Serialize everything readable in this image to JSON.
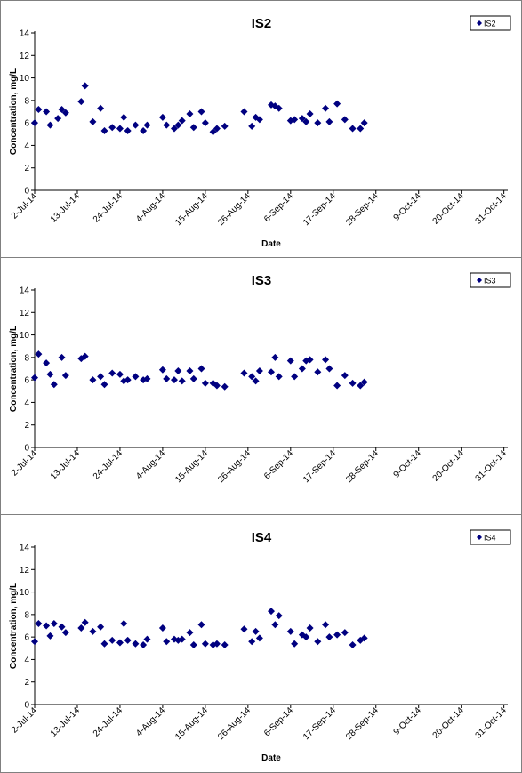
{
  "chart_data": [
    {
      "type": "scatter",
      "title": "IS2",
      "xlabel": "Date",
      "ylabel": "Concentration, mg/L",
      "ylim": [
        0,
        14
      ],
      "yticks": [
        0,
        2,
        4,
        6,
        8,
        10,
        12,
        14
      ],
      "xlim": [
        "2014-07-02",
        "2014-11-01"
      ],
      "xticks": [
        {
          "date": "2014-07-02",
          "label": "2-Jul-14"
        },
        {
          "date": "2014-07-13",
          "label": "13-Jul-14"
        },
        {
          "date": "2014-07-24",
          "label": "24-Jul-14"
        },
        {
          "date": "2014-08-04",
          "label": "4-Aug-14"
        },
        {
          "date": "2014-08-15",
          "label": "15-Aug-14"
        },
        {
          "date": "2014-08-26",
          "label": "26-Aug-14"
        },
        {
          "date": "2014-09-06",
          "label": "6-Sep-14"
        },
        {
          "date": "2014-09-17",
          "label": "17-Sep-14"
        },
        {
          "date": "2014-09-28",
          "label": "28-Sep-14"
        },
        {
          "date": "2014-10-09",
          "label": "9-Oct-14"
        },
        {
          "date": "2014-10-20",
          "label": "20-Oct-14"
        },
        {
          "date": "2014-10-31",
          "label": "31-Oct-14"
        }
      ],
      "grid": false,
      "legend_position": "top-right",
      "marker_color": "#000080",
      "series": [
        {
          "name": "IS2",
          "points": [
            {
              "x": "2014-07-02",
              "y": 6.0
            },
            {
              "x": "2014-07-03",
              "y": 7.2
            },
            {
              "x": "2014-07-05",
              "y": 7.0
            },
            {
              "x": "2014-07-06",
              "y": 5.8
            },
            {
              "x": "2014-07-08",
              "y": 6.4
            },
            {
              "x": "2014-07-09",
              "y": 7.2
            },
            {
              "x": "2014-07-10",
              "y": 6.9
            },
            {
              "x": "2014-07-14",
              "y": 7.9
            },
            {
              "x": "2014-07-15",
              "y": 9.3
            },
            {
              "x": "2014-07-17",
              "y": 6.1
            },
            {
              "x": "2014-07-19",
              "y": 7.3
            },
            {
              "x": "2014-07-20",
              "y": 5.3
            },
            {
              "x": "2014-07-22",
              "y": 5.6
            },
            {
              "x": "2014-07-24",
              "y": 5.5
            },
            {
              "x": "2014-07-25",
              "y": 6.5
            },
            {
              "x": "2014-07-26",
              "y": 5.3
            },
            {
              "x": "2014-07-28",
              "y": 5.8
            },
            {
              "x": "2014-07-30",
              "y": 5.3
            },
            {
              "x": "2014-07-31",
              "y": 5.8
            },
            {
              "x": "2014-08-04",
              "y": 6.5
            },
            {
              "x": "2014-08-05",
              "y": 5.8
            },
            {
              "x": "2014-08-07",
              "y": 5.5
            },
            {
              "x": "2014-08-08",
              "y": 5.8
            },
            {
              "x": "2014-08-09",
              "y": 6.2
            },
            {
              "x": "2014-08-11",
              "y": 6.8
            },
            {
              "x": "2014-08-12",
              "y": 5.6
            },
            {
              "x": "2014-08-14",
              "y": 7.0
            },
            {
              "x": "2014-08-15",
              "y": 6.0
            },
            {
              "x": "2014-08-17",
              "y": 5.2
            },
            {
              "x": "2014-08-18",
              "y": 5.5
            },
            {
              "x": "2014-08-20",
              "y": 5.7
            },
            {
              "x": "2014-08-25",
              "y": 7.0
            },
            {
              "x": "2014-08-27",
              "y": 5.7
            },
            {
              "x": "2014-08-28",
              "y": 6.5
            },
            {
              "x": "2014-08-29",
              "y": 6.3
            },
            {
              "x": "2014-09-01",
              "y": 7.6
            },
            {
              "x": "2014-09-02",
              "y": 7.5
            },
            {
              "x": "2014-09-03",
              "y": 7.3
            },
            {
              "x": "2014-09-06",
              "y": 6.2
            },
            {
              "x": "2014-09-07",
              "y": 6.3
            },
            {
              "x": "2014-09-09",
              "y": 6.4
            },
            {
              "x": "2014-09-10",
              "y": 6.1
            },
            {
              "x": "2014-09-11",
              "y": 6.8
            },
            {
              "x": "2014-09-13",
              "y": 6.0
            },
            {
              "x": "2014-09-15",
              "y": 7.3
            },
            {
              "x": "2014-09-16",
              "y": 6.1
            },
            {
              "x": "2014-09-18",
              "y": 7.7
            },
            {
              "x": "2014-09-20",
              "y": 6.3
            },
            {
              "x": "2014-09-22",
              "y": 5.5
            },
            {
              "x": "2014-09-24",
              "y": 5.5
            },
            {
              "x": "2014-09-25",
              "y": 6.0
            }
          ]
        }
      ]
    },
    {
      "type": "scatter",
      "title": "IS3",
      "xlabel": "",
      "ylabel": "Concentration, mg/L",
      "ylim": [
        0,
        14
      ],
      "yticks": [
        0,
        2,
        4,
        6,
        8,
        10,
        12,
        14
      ],
      "xlim": [
        "2014-07-02",
        "2014-11-01"
      ],
      "xticks": [
        {
          "date": "2014-07-02",
          "label": "2-Jul-14"
        },
        {
          "date": "2014-07-13",
          "label": "13-Jul-14"
        },
        {
          "date": "2014-07-24",
          "label": "24-Jul-14"
        },
        {
          "date": "2014-08-04",
          "label": "4-Aug-14"
        },
        {
          "date": "2014-08-15",
          "label": "15-Aug-14"
        },
        {
          "date": "2014-08-26",
          "label": "26-Aug-14"
        },
        {
          "date": "2014-09-06",
          "label": "6-Sep-14"
        },
        {
          "date": "2014-09-17",
          "label": "17-Sep-14"
        },
        {
          "date": "2014-09-28",
          "label": "28-Sep-14"
        },
        {
          "date": "2014-10-09",
          "label": "9-Oct-14"
        },
        {
          "date": "2014-10-20",
          "label": "20-Oct-14"
        },
        {
          "date": "2014-10-31",
          "label": "31-Oct-14"
        }
      ],
      "grid": false,
      "legend_position": "top-right",
      "marker_color": "#000080",
      "series": [
        {
          "name": "IS3",
          "points": [
            {
              "x": "2014-07-02",
              "y": 6.2
            },
            {
              "x": "2014-07-03",
              "y": 8.3
            },
            {
              "x": "2014-07-05",
              "y": 7.5
            },
            {
              "x": "2014-07-06",
              "y": 6.5
            },
            {
              "x": "2014-07-07",
              "y": 5.6
            },
            {
              "x": "2014-07-09",
              "y": 8.0
            },
            {
              "x": "2014-07-10",
              "y": 6.4
            },
            {
              "x": "2014-07-14",
              "y": 7.9
            },
            {
              "x": "2014-07-15",
              "y": 8.1
            },
            {
              "x": "2014-07-17",
              "y": 6.0
            },
            {
              "x": "2014-07-19",
              "y": 6.3
            },
            {
              "x": "2014-07-20",
              "y": 5.6
            },
            {
              "x": "2014-07-22",
              "y": 6.6
            },
            {
              "x": "2014-07-24",
              "y": 6.5
            },
            {
              "x": "2014-07-25",
              "y": 5.9
            },
            {
              "x": "2014-07-26",
              "y": 6.0
            },
            {
              "x": "2014-07-28",
              "y": 6.3
            },
            {
              "x": "2014-07-30",
              "y": 6.0
            },
            {
              "x": "2014-07-31",
              "y": 6.1
            },
            {
              "x": "2014-08-04",
              "y": 6.9
            },
            {
              "x": "2014-08-05",
              "y": 6.1
            },
            {
              "x": "2014-08-07",
              "y": 6.0
            },
            {
              "x": "2014-08-08",
              "y": 6.8
            },
            {
              "x": "2014-08-09",
              "y": 5.9
            },
            {
              "x": "2014-08-11",
              "y": 6.8
            },
            {
              "x": "2014-08-12",
              "y": 6.1
            },
            {
              "x": "2014-08-14",
              "y": 7.0
            },
            {
              "x": "2014-08-15",
              "y": 5.7
            },
            {
              "x": "2014-08-17",
              "y": 5.7
            },
            {
              "x": "2014-08-18",
              "y": 5.5
            },
            {
              "x": "2014-08-20",
              "y": 5.4
            },
            {
              "x": "2014-08-25",
              "y": 6.6
            },
            {
              "x": "2014-08-27",
              "y": 6.3
            },
            {
              "x": "2014-08-28",
              "y": 5.9
            },
            {
              "x": "2014-08-29",
              "y": 6.8
            },
            {
              "x": "2014-09-01",
              "y": 6.7
            },
            {
              "x": "2014-09-02",
              "y": 8.0
            },
            {
              "x": "2014-09-03",
              "y": 6.3
            },
            {
              "x": "2014-09-06",
              "y": 7.7
            },
            {
              "x": "2014-09-07",
              "y": 6.3
            },
            {
              "x": "2014-09-09",
              "y": 7.0
            },
            {
              "x": "2014-09-10",
              "y": 7.7
            },
            {
              "x": "2014-09-11",
              "y": 7.8
            },
            {
              "x": "2014-09-13",
              "y": 6.7
            },
            {
              "x": "2014-09-15",
              "y": 7.8
            },
            {
              "x": "2014-09-16",
              "y": 7.0
            },
            {
              "x": "2014-09-18",
              "y": 5.5
            },
            {
              "x": "2014-09-20",
              "y": 6.4
            },
            {
              "x": "2014-09-22",
              "y": 5.7
            },
            {
              "x": "2014-09-24",
              "y": 5.5
            },
            {
              "x": "2014-09-25",
              "y": 5.8
            }
          ]
        }
      ]
    },
    {
      "type": "scatter",
      "title": "IS4",
      "xlabel": "Date",
      "ylabel": "Concentration, mg/L",
      "ylim": [
        0,
        14
      ],
      "yticks": [
        0,
        2,
        4,
        6,
        8,
        10,
        12,
        14
      ],
      "xlim": [
        "2014-07-02",
        "2014-11-01"
      ],
      "xticks": [
        {
          "date": "2014-07-02",
          "label": "2-Jul-14"
        },
        {
          "date": "2014-07-13",
          "label": "13-Jul-14"
        },
        {
          "date": "2014-07-24",
          "label": "24-Jul-14"
        },
        {
          "date": "2014-08-04",
          "label": "4-Aug-14"
        },
        {
          "date": "2014-08-15",
          "label": "15-Aug-14"
        },
        {
          "date": "2014-08-26",
          "label": "26-Aug-14"
        },
        {
          "date": "2014-09-06",
          "label": "6-Sep-14"
        },
        {
          "date": "2014-09-17",
          "label": "17-Sep-14"
        },
        {
          "date": "2014-09-28",
          "label": "28-Sep-14"
        },
        {
          "date": "2014-10-09",
          "label": "9-Oct-14"
        },
        {
          "date": "2014-10-20",
          "label": "20-Oct-14"
        },
        {
          "date": "2014-10-31",
          "label": "31-Oct-14"
        }
      ],
      "grid": false,
      "legend_position": "top-right",
      "marker_color": "#000080",
      "series": [
        {
          "name": "IS4",
          "points": [
            {
              "x": "2014-07-02",
              "y": 5.6
            },
            {
              "x": "2014-07-03",
              "y": 7.2
            },
            {
              "x": "2014-07-05",
              "y": 7.0
            },
            {
              "x": "2014-07-06",
              "y": 6.1
            },
            {
              "x": "2014-07-07",
              "y": 7.2
            },
            {
              "x": "2014-07-09",
              "y": 6.9
            },
            {
              "x": "2014-07-10",
              "y": 6.4
            },
            {
              "x": "2014-07-14",
              "y": 6.8
            },
            {
              "x": "2014-07-15",
              "y": 7.3
            },
            {
              "x": "2014-07-17",
              "y": 6.5
            },
            {
              "x": "2014-07-19",
              "y": 6.9
            },
            {
              "x": "2014-07-20",
              "y": 5.4
            },
            {
              "x": "2014-07-22",
              "y": 5.7
            },
            {
              "x": "2014-07-24",
              "y": 5.5
            },
            {
              "x": "2014-07-25",
              "y": 7.2
            },
            {
              "x": "2014-07-26",
              "y": 5.7
            },
            {
              "x": "2014-07-28",
              "y": 5.4
            },
            {
              "x": "2014-07-30",
              "y": 5.3
            },
            {
              "x": "2014-07-31",
              "y": 5.8
            },
            {
              "x": "2014-08-04",
              "y": 6.8
            },
            {
              "x": "2014-08-05",
              "y": 5.6
            },
            {
              "x": "2014-08-07",
              "y": 5.8
            },
            {
              "x": "2014-08-08",
              "y": 5.7
            },
            {
              "x": "2014-08-09",
              "y": 5.8
            },
            {
              "x": "2014-08-11",
              "y": 6.4
            },
            {
              "x": "2014-08-12",
              "y": 5.3
            },
            {
              "x": "2014-08-14",
              "y": 7.1
            },
            {
              "x": "2014-08-15",
              "y": 5.4
            },
            {
              "x": "2014-08-17",
              "y": 5.3
            },
            {
              "x": "2014-08-18",
              "y": 5.4
            },
            {
              "x": "2014-08-20",
              "y": 5.3
            },
            {
              "x": "2014-08-25",
              "y": 6.7
            },
            {
              "x": "2014-08-27",
              "y": 5.6
            },
            {
              "x": "2014-08-28",
              "y": 6.5
            },
            {
              "x": "2014-08-29",
              "y": 5.9
            },
            {
              "x": "2014-09-01",
              "y": 8.3
            },
            {
              "x": "2014-09-02",
              "y": 7.1
            },
            {
              "x": "2014-09-03",
              "y": 7.9
            },
            {
              "x": "2014-09-06",
              "y": 6.5
            },
            {
              "x": "2014-09-07",
              "y": 5.4
            },
            {
              "x": "2014-09-09",
              "y": 6.2
            },
            {
              "x": "2014-09-10",
              "y": 6.0
            },
            {
              "x": "2014-09-11",
              "y": 6.8
            },
            {
              "x": "2014-09-13",
              "y": 5.6
            },
            {
              "x": "2014-09-15",
              "y": 7.1
            },
            {
              "x": "2014-09-16",
              "y": 6.0
            },
            {
              "x": "2014-09-18",
              "y": 6.2
            },
            {
              "x": "2014-09-20",
              "y": 6.4
            },
            {
              "x": "2014-09-22",
              "y": 5.3
            },
            {
              "x": "2014-09-24",
              "y": 5.7
            },
            {
              "x": "2014-09-25",
              "y": 5.9
            }
          ]
        }
      ]
    }
  ]
}
